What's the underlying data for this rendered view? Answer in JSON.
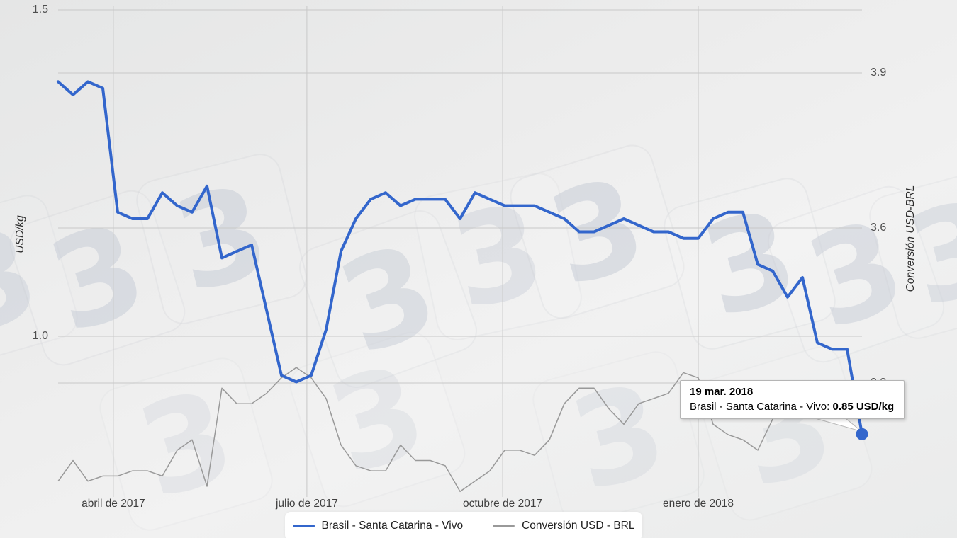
{
  "chart_data": {
    "type": "line",
    "title": "",
    "x": [
      "2017-03-06",
      "2017-03-13",
      "2017-03-20",
      "2017-03-27",
      "2017-04-03",
      "2017-04-10",
      "2017-04-17",
      "2017-04-24",
      "2017-05-01",
      "2017-05-08",
      "2017-05-15",
      "2017-05-22",
      "2017-05-29",
      "2017-06-05",
      "2017-06-12",
      "2017-06-19",
      "2017-06-26",
      "2017-07-03",
      "2017-07-10",
      "2017-07-17",
      "2017-07-24",
      "2017-07-31",
      "2017-08-07",
      "2017-08-14",
      "2017-08-21",
      "2017-08-28",
      "2017-09-04",
      "2017-09-11",
      "2017-09-18",
      "2017-09-25",
      "2017-10-02",
      "2017-10-09",
      "2017-10-16",
      "2017-10-23",
      "2017-10-30",
      "2017-11-06",
      "2017-11-13",
      "2017-11-20",
      "2017-11-27",
      "2017-12-04",
      "2017-12-11",
      "2017-12-18",
      "2017-12-25",
      "2018-01-01",
      "2018-01-08",
      "2018-01-15",
      "2018-01-22",
      "2018-01-29",
      "2018-02-05",
      "2018-02-12",
      "2018-02-19",
      "2018-02-26",
      "2018-03-05",
      "2018-03-12",
      "2018-03-19"
    ],
    "x_tick_labels": [
      {
        "label": "abril de 2017",
        "i": 3.71
      },
      {
        "label": "julio de 2017",
        "i": 16.71
      },
      {
        "label": "octubre de 2017",
        "i": 29.86
      },
      {
        "label": "enero de 2018",
        "i": 43
      }
    ],
    "left_axis": {
      "title": "USD/kg",
      "ticks": [
        {
          "label": "1.5",
          "value": 1.5
        },
        {
          "label": "1.0",
          "value": 1.0
        }
      ]
    },
    "right_axis": {
      "title": "Conversión USD-BRL",
      "ticks": [
        {
          "label": "3.9",
          "value": 3.9
        },
        {
          "label": "3.6",
          "value": 3.6
        },
        {
          "label": "3.3",
          "value": 3.3
        }
      ]
    },
    "grid": true,
    "legend_position": "bottom",
    "series": [
      {
        "name": "Brasil - Santa Catarina - Vivo",
        "axis": "left",
        "color": "#3366cc",
        "values": [
          1.39,
          1.37,
          1.39,
          1.38,
          1.19,
          1.18,
          1.18,
          1.22,
          1.2,
          1.19,
          1.23,
          1.12,
          1.13,
          1.14,
          1.04,
          0.94,
          0.93,
          0.94,
          1.01,
          1.13,
          1.18,
          1.21,
          1.22,
          1.2,
          1.21,
          1.21,
          1.21,
          1.18,
          1.22,
          1.21,
          1.2,
          1.2,
          1.2,
          1.19,
          1.18,
          1.16,
          1.16,
          1.17,
          1.18,
          1.17,
          1.16,
          1.16,
          1.15,
          1.15,
          1.18,
          1.19,
          1.19,
          1.11,
          1.1,
          1.06,
          1.09,
          0.99,
          0.98,
          0.98,
          0.85
        ]
      },
      {
        "name": "Conversión USD - BRL",
        "axis": "right",
        "color": "#999999",
        "values": [
          3.11,
          3.15,
          3.11,
          3.12,
          3.12,
          3.13,
          3.13,
          3.12,
          3.17,
          3.19,
          3.1,
          3.29,
          3.26,
          3.26,
          3.28,
          3.31,
          3.33,
          3.31,
          3.27,
          3.18,
          3.14,
          3.13,
          3.13,
          3.18,
          3.15,
          3.15,
          3.14,
          3.09,
          3.11,
          3.13,
          3.17,
          3.17,
          3.16,
          3.19,
          3.26,
          3.29,
          3.29,
          3.25,
          3.22,
          3.26,
          3.27,
          3.28,
          3.32,
          3.31,
          3.22,
          3.2,
          3.19,
          3.17,
          3.23,
          3.28,
          3.3,
          3.28,
          3.29,
          3.3,
          3.3
        ]
      }
    ],
    "highlight": {
      "series": 0,
      "index": 54,
      "value": 0.85
    }
  },
  "tooltip": {
    "date": "19 mar. 2018",
    "series_label": "Brasil - Santa Catarina - Vivo:",
    "value": "0.85 USD/kg"
  },
  "legend": [
    {
      "label": "Brasil - Santa Catarina - Vivo",
      "color": "#3366cc"
    },
    {
      "label": "Conversión USD - BRL",
      "color": "#999999"
    }
  ],
  "watermark": {
    "glyph": "3"
  },
  "colors": {
    "series_blue": "#3366cc",
    "series_gray": "#999999",
    "gridline": "#c8c8c8",
    "tick_label": "#4e4e4e",
    "tooltip_border": "#b5b5b5",
    "background": "#ececec"
  }
}
